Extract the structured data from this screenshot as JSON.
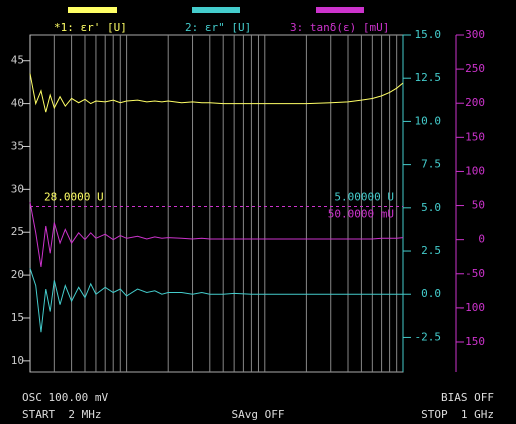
{
  "chart_data": {
    "type": "line",
    "x": [
      2,
      2.2,
      2.4,
      2.6,
      2.8,
      3,
      3.3,
      3.6,
      4,
      4.5,
      5,
      5.5,
      6,
      7,
      8,
      9,
      10,
      12,
      14,
      16,
      18,
      20,
      25,
      30,
      35,
      40,
      50,
      60,
      80,
      100,
      150,
      200,
      300,
      400,
      500,
      600,
      700,
      800,
      900,
      1000
    ],
    "xlim": [
      2,
      1000
    ],
    "xscale": "log",
    "xticks": [
      2,
      3,
      4,
      5,
      6,
      7,
      8,
      9,
      10,
      20,
      30,
      40,
      50,
      60,
      70,
      80,
      90,
      100,
      200,
      300,
      400,
      500,
      600,
      700,
      800,
      900,
      1000
    ],
    "ylim": [
      8.7,
      48
    ],
    "yticks": [
      10,
      15,
      20,
      25,
      30,
      35,
      40,
      45
    ],
    "y2lim": [
      -4.5,
      15
    ],
    "y2ticks": [
      {
        "value": 15,
        "label": "15.0"
      },
      12.5,
      {
        "value": 10,
        "label": "10.0"
      },
      7.5,
      {
        "value": 5,
        "label": "5.0"
      },
      2.5,
      {
        "value": 0,
        "label": "0.0"
      },
      -2.5
    ],
    "y3lim": [
      -194,
      300
    ],
    "y3ticks": [
      300,
      250,
      200,
      150,
      100,
      50,
      0,
      -50,
      -100,
      -150
    ],
    "series": [
      {
        "name": "*1: εr' [U]",
        "color": "#ffff66",
        "axis": "y",
        "values": [
          43.5,
          40,
          41.5,
          39,
          41,
          39.5,
          40.8,
          39.7,
          40.6,
          40.1,
          40.5,
          40,
          40.3,
          40.2,
          40.4,
          40.1,
          40.3,
          40.4,
          40.2,
          40.3,
          40.2,
          40.3,
          40.1,
          40.2,
          40.1,
          40.1,
          40,
          40,
          40,
          40,
          40,
          40,
          40.1,
          40.2,
          40.4,
          40.6,
          40.9,
          41.3,
          41.8,
          42.4
        ]
      },
      {
        "name": "2: εr\" [U]",
        "color": "#44cccc",
        "axis": "y2",
        "values": [
          1.5,
          0.5,
          -2.2,
          0.3,
          -1,
          0.8,
          -0.6,
          0.5,
          -0.4,
          0.4,
          -0.2,
          0.6,
          0,
          0.4,
          0.1,
          0.3,
          -0.1,
          0.3,
          0.1,
          0.2,
          0,
          0.1,
          0.1,
          0,
          0.1,
          0,
          0,
          0.05,
          0,
          0,
          0,
          0,
          0,
          0,
          0,
          0,
          0,
          0,
          0,
          0
        ]
      },
      {
        "name": "3: tanδ(ε) [mU]",
        "color": "#cc33cc",
        "axis": "y3",
        "values": [
          55,
          10,
          -40,
          20,
          -20,
          25,
          -5,
          15,
          -5,
          10,
          0,
          10,
          2,
          8,
          0,
          6,
          2,
          5,
          1,
          4,
          2,
          3,
          2,
          1,
          2,
          1,
          1,
          1,
          1,
          1,
          1,
          1,
          1,
          1,
          1,
          1,
          2,
          2,
          2,
          3
        ]
      }
    ],
    "reference_values": [
      28,
      5,
      50
    ],
    "reference_labels": [
      "28.0000 U",
      "5.00000 U",
      "50.0000 mU"
    ],
    "footer": [
      "OSC 100.00 mV",
      "BIAS OFF",
      "START  2 MHz",
      "SAvg OFF",
      "STOP  1 GHz"
    ]
  }
}
